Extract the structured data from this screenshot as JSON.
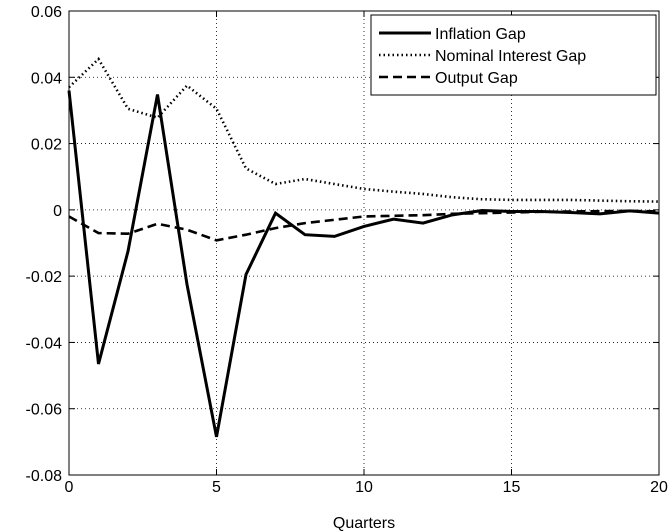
{
  "chart_data": {
    "type": "line",
    "title": "",
    "xlabel": "Quarters",
    "ylabel": "",
    "xlim": [
      0,
      20
    ],
    "ylim": [
      -0.08,
      0.06
    ],
    "grid": true,
    "legend_position": "top-right",
    "x_ticks": [
      "0",
      "5",
      "10",
      "15",
      "20"
    ],
    "y_ticks": [
      "-0.08",
      "-0.06",
      "-0.04",
      "-0.02",
      "0",
      "0.02",
      "0.04",
      "0.06"
    ],
    "x": [
      0,
      1,
      2,
      3,
      4,
      5,
      6,
      7,
      8,
      9,
      10,
      11,
      12,
      13,
      14,
      15,
      16,
      17,
      18,
      19,
      20
    ],
    "series": [
      {
        "name": "Inflation Gap",
        "style": "solid",
        "color": "#000000",
        "values": [
          0.036,
          -0.0465,
          -0.0125,
          0.0348,
          -0.0225,
          -0.0685,
          -0.0195,
          -0.001,
          -0.0075,
          -0.008,
          -0.005,
          -0.0028,
          -0.004,
          -0.0015,
          -0.0002,
          -0.0005,
          -0.0005,
          -0.0008,
          -0.0012,
          -0.0003,
          -0.001
        ]
      },
      {
        "name": "Nominal Interest Gap",
        "style": "dotted",
        "color": "#000000",
        "values": [
          0.037,
          0.0455,
          0.0305,
          0.0278,
          0.0375,
          0.0305,
          0.0125,
          0.0078,
          0.0093,
          0.0078,
          0.0063,
          0.0055,
          0.0048,
          0.0038,
          0.0032,
          0.003,
          0.003,
          0.003,
          0.0028,
          0.0026,
          0.0025
        ]
      },
      {
        "name": "Output Gap",
        "style": "dashed",
        "color": "#000000",
        "values": [
          -0.002,
          -0.007,
          -0.0072,
          -0.0042,
          -0.006,
          -0.0092,
          -0.0075,
          -0.0055,
          -0.004,
          -0.003,
          -0.002,
          -0.0018,
          -0.0016,
          -0.0012,
          -0.001,
          -0.0008,
          -0.0006,
          -0.0005,
          -0.0004,
          -0.0003,
          -0.0005
        ]
      }
    ]
  }
}
